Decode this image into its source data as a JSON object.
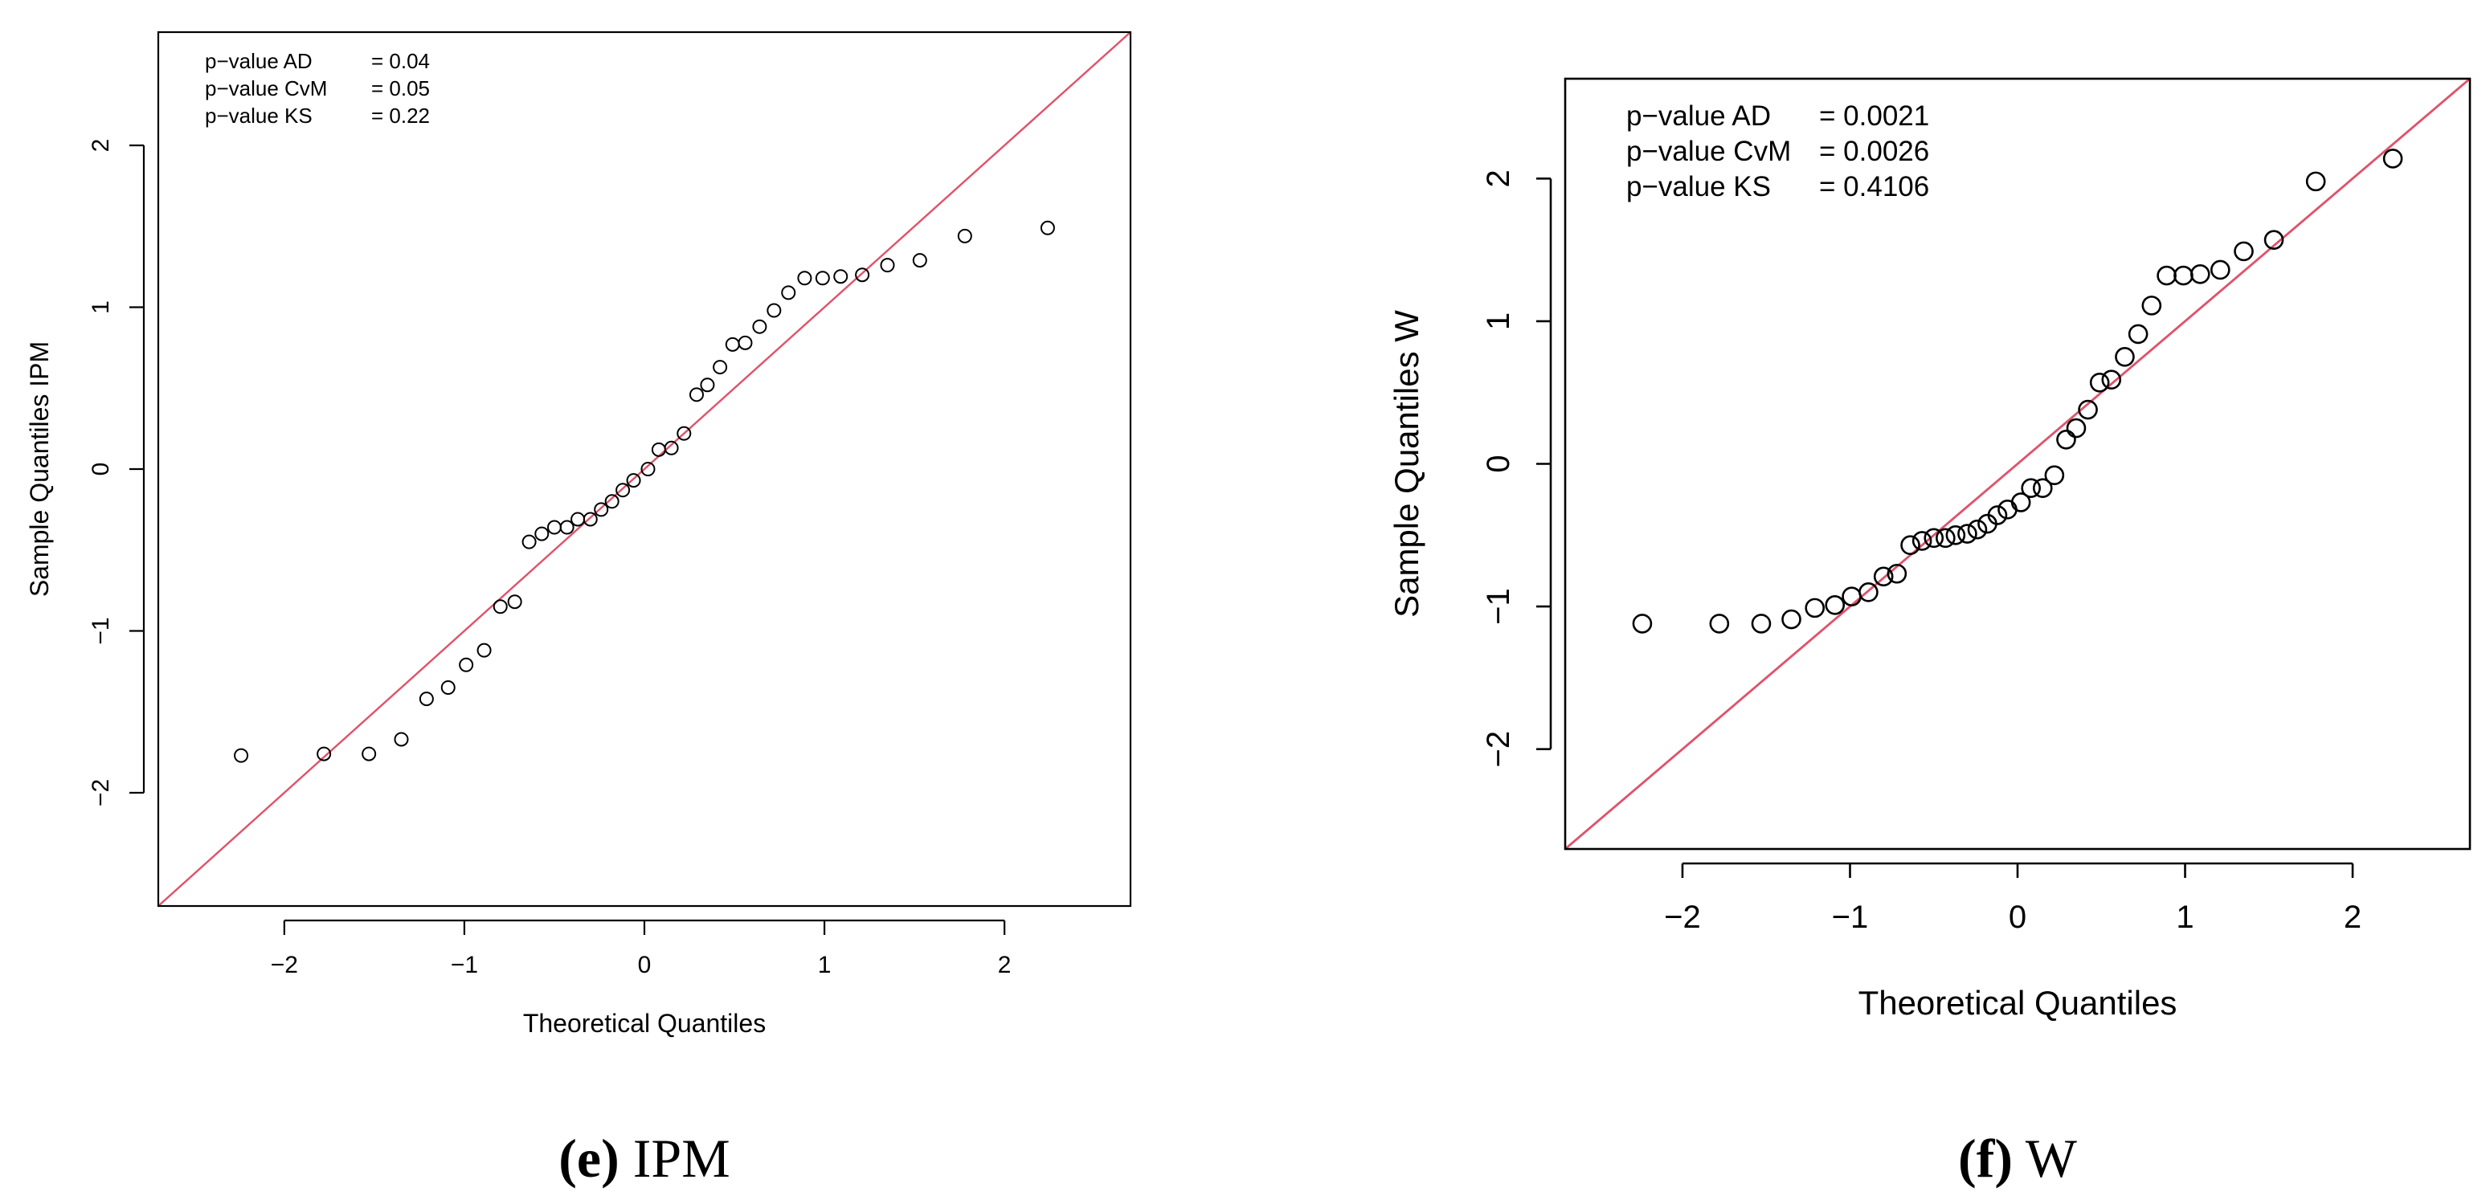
{
  "chart_data": [
    {
      "type": "scatter",
      "panel": "e",
      "caption_letter": "(e)",
      "caption_text": " IPM",
      "xlabel": "Theoretical Quantiles",
      "ylabel": "Sample Quantiles IPM",
      "xlim": [
        -2.7,
        2.7
      ],
      "ylim": [
        -2.7,
        2.7
      ],
      "xticks": [
        -2,
        -1,
        0,
        1,
        2
      ],
      "yticks": [
        -2,
        -1,
        0,
        1,
        2
      ],
      "xtick_labels": [
        "−2",
        "−1",
        "0",
        "1",
        "2"
      ],
      "ytick_labels": [
        "−2",
        "−1",
        "0",
        "1",
        "2"
      ],
      "reference_line": {
        "slope": 1,
        "intercept": 0,
        "color": "#df536b"
      },
      "stats": [
        {
          "label": "p−value AD",
          "value": "= 0.04"
        },
        {
          "label": "p−value CvM",
          "value": "= 0.05"
        },
        {
          "label": "p−value KS",
          "value": "= 0.22"
        }
      ],
      "points": [
        [
          -2.24,
          -1.77
        ],
        [
          -1.78,
          -1.76
        ],
        [
          -1.53,
          -1.76
        ],
        [
          -1.35,
          -1.67
        ],
        [
          -1.21,
          -1.42
        ],
        [
          -1.09,
          -1.35
        ],
        [
          -0.99,
          -1.21
        ],
        [
          -0.89,
          -1.12
        ],
        [
          -0.8,
          -0.85
        ],
        [
          -0.72,
          -0.82
        ],
        [
          -0.64,
          -0.45
        ],
        [
          -0.57,
          -0.4
        ],
        [
          -0.5,
          -0.36
        ],
        [
          -0.43,
          -0.36
        ],
        [
          -0.37,
          -0.31
        ],
        [
          -0.3,
          -0.31
        ],
        [
          -0.24,
          -0.25
        ],
        [
          -0.18,
          -0.2
        ],
        [
          -0.12,
          -0.13
        ],
        [
          -0.06,
          -0.07
        ],
        [
          0.02,
          0.0
        ],
        [
          0.08,
          0.12
        ],
        [
          0.15,
          0.13
        ],
        [
          0.22,
          0.22
        ],
        [
          0.29,
          0.46
        ],
        [
          0.35,
          0.52
        ],
        [
          0.42,
          0.63
        ],
        [
          0.49,
          0.77
        ],
        [
          0.56,
          0.78
        ],
        [
          0.64,
          0.88
        ],
        [
          0.72,
          0.98
        ],
        [
          0.8,
          1.09
        ],
        [
          0.89,
          1.18
        ],
        [
          0.99,
          1.18
        ],
        [
          1.09,
          1.19
        ],
        [
          1.21,
          1.2
        ],
        [
          1.35,
          1.26
        ],
        [
          1.53,
          1.29
        ],
        [
          1.78,
          1.44
        ],
        [
          2.24,
          1.49
        ]
      ]
    },
    {
      "type": "scatter",
      "panel": "f",
      "caption_letter": "(f)",
      "caption_text": " W",
      "xlabel": "Theoretical Quantiles",
      "ylabel": "Sample Quantiles W",
      "xlim": [
        -2.7,
        2.7
      ],
      "ylim": [
        -2.7,
        2.7
      ],
      "xticks": [
        -2,
        -1,
        0,
        1,
        2
      ],
      "yticks": [
        -2,
        -1,
        0,
        1,
        2
      ],
      "xtick_labels": [
        "−2",
        "−1",
        "0",
        "1",
        "2"
      ],
      "ytick_labels": [
        "−2",
        "−1",
        "0",
        "1",
        "2"
      ],
      "reference_line": {
        "slope": 1,
        "intercept": 0,
        "color": "#df536b"
      },
      "stats": [
        {
          "label": "p−value AD",
          "value": "= 0.0021"
        },
        {
          "label": "p−value CvM",
          "value": "= 0.0026"
        },
        {
          "label": "p−value KS",
          "value": "= 0.4106"
        }
      ],
      "points": [
        [
          -2.24,
          -1.12
        ],
        [
          -1.78,
          -1.12
        ],
        [
          -1.53,
          -1.12
        ],
        [
          -1.35,
          -1.09
        ],
        [
          -1.21,
          -1.01
        ],
        [
          -1.09,
          -0.99
        ],
        [
          -0.99,
          -0.93
        ],
        [
          -0.89,
          -0.9
        ],
        [
          -0.8,
          -0.79
        ],
        [
          -0.72,
          -0.77
        ],
        [
          -0.64,
          -0.57
        ],
        [
          -0.57,
          -0.54
        ],
        [
          -0.5,
          -0.52
        ],
        [
          -0.43,
          -0.52
        ],
        [
          -0.37,
          -0.5
        ],
        [
          -0.3,
          -0.49
        ],
        [
          -0.24,
          -0.46
        ],
        [
          -0.18,
          -0.42
        ],
        [
          -0.12,
          -0.36
        ],
        [
          -0.06,
          -0.32
        ],
        [
          0.02,
          -0.27
        ],
        [
          0.08,
          -0.17
        ],
        [
          0.15,
          -0.17
        ],
        [
          0.22,
          -0.08
        ],
        [
          0.29,
          0.17
        ],
        [
          0.35,
          0.25
        ],
        [
          0.42,
          0.38
        ],
        [
          0.49,
          0.57
        ],
        [
          0.56,
          0.59
        ],
        [
          0.64,
          0.75
        ],
        [
          0.72,
          0.91
        ],
        [
          0.8,
          1.11
        ],
        [
          0.89,
          1.32
        ],
        [
          0.99,
          1.32
        ],
        [
          1.09,
          1.33
        ],
        [
          1.21,
          1.36
        ],
        [
          1.35,
          1.49
        ],
        [
          1.53,
          1.57
        ],
        [
          1.78,
          1.98
        ],
        [
          2.24,
          2.14
        ]
      ]
    }
  ]
}
